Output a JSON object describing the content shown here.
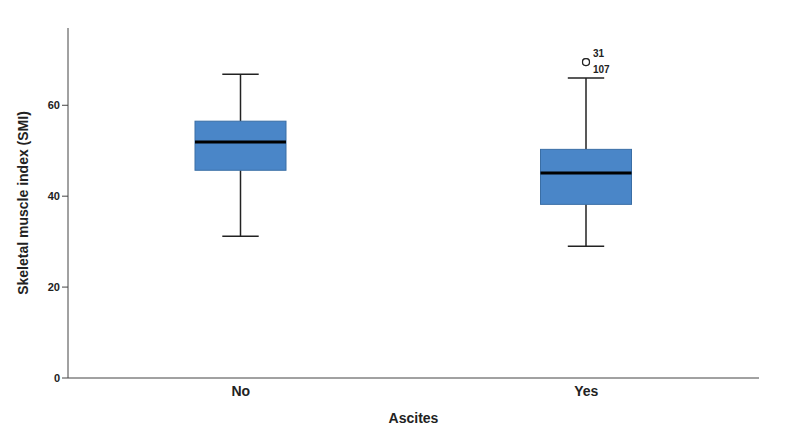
{
  "chart_data": {
    "type": "box",
    "x_label": "Ascites",
    "y_label": "Skeletal muscle index (SMI)",
    "categories": [
      "No",
      "Yes"
    ],
    "boxes": [
      {
        "min": 31.2,
        "q1": 45.7,
        "median": 51.9,
        "q3": 56.5,
        "max": 66.8,
        "outliers": []
      },
      {
        "min": 29.0,
        "q1": 38.2,
        "median": 45.1,
        "q3": 50.3,
        "max": 66.0,
        "outliers": [
          {
            "value": 69.5,
            "label": "31"
          },
          {
            "value": 69.5,
            "label": "107"
          }
        ]
      }
    ],
    "color": "#4a86c8",
    "ylim": [
      0,
      77
    ],
    "yticks": [
      0,
      20,
      40,
      60
    ],
    "grid": false
  }
}
